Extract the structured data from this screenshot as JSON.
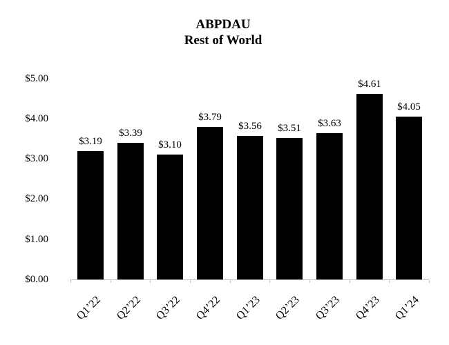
{
  "page": {
    "background": "#ffffff"
  },
  "chart_data": {
    "type": "bar",
    "title": "ABPDAU",
    "subtitle": "Rest of World",
    "categories": [
      "Q1’22",
      "Q2’22",
      "Q3’22",
      "Q4’22",
      "Q1’23",
      "Q2’23",
      "Q3’23",
      "Q4’23",
      "Q1’24"
    ],
    "values": [
      3.19,
      3.39,
      3.1,
      3.79,
      3.56,
      3.51,
      3.63,
      4.61,
      4.05
    ],
    "data_labels": [
      "$3.19",
      "$3.39",
      "$3.10",
      "$3.79",
      "$3.56",
      "$3.51",
      "$3.63",
      "$4.61",
      "$4.05"
    ],
    "y_tick_labels": [
      "$0.00",
      "$1.00",
      "$2.00",
      "$3.00",
      "$4.00",
      "$5.00"
    ],
    "y_tick_values": [
      0,
      1,
      2,
      3,
      4,
      5
    ],
    "ylim": [
      0,
      5
    ],
    "xlabel": "",
    "ylabel": "",
    "grid": false,
    "legend": "none",
    "bar_color": "#000000",
    "axis_color": "#bfbfbf",
    "text_color": "#000000",
    "background_color": "#ffffff"
  }
}
